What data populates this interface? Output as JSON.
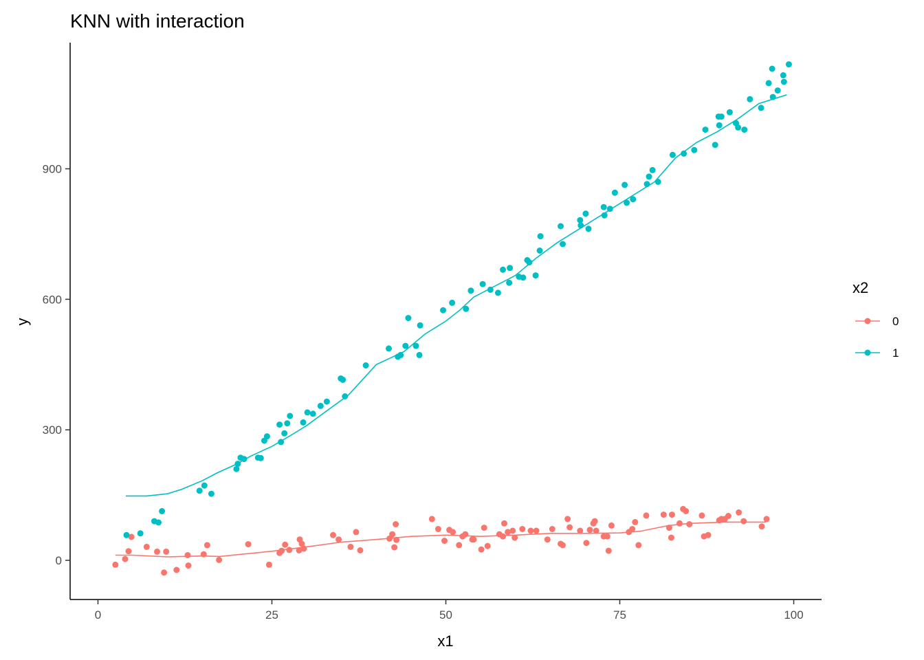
{
  "chart_data": {
    "type": "scatter",
    "title": "KNN with interaction",
    "xlabel": "x1",
    "ylabel": "y",
    "xlim": [
      -4,
      104
    ],
    "ylim": [
      -90,
      1190
    ],
    "x_ticks": [
      0,
      25,
      50,
      75,
      100
    ],
    "y_ticks": [
      0,
      300,
      600,
      900
    ],
    "grid": false,
    "legend": {
      "title": "x2",
      "position": "right"
    },
    "series": [
      {
        "name": "0",
        "color": "#f8766d",
        "points": [
          [
            2.5,
            -10
          ],
          [
            3.9,
            3
          ],
          [
            4.4,
            21
          ],
          [
            4.8,
            54
          ],
          [
            7,
            31
          ],
          [
            8.5,
            20
          ],
          [
            9.5,
            -28
          ],
          [
            9.8,
            20
          ],
          [
            11.3,
            -22
          ],
          [
            12.9,
            12
          ],
          [
            13,
            -12
          ],
          [
            15.2,
            14
          ],
          [
            15.7,
            35
          ],
          [
            17.4,
            1
          ],
          [
            21.6,
            37
          ],
          [
            24.6,
            -10
          ],
          [
            26.1,
            17
          ],
          [
            26.4,
            22
          ],
          [
            26.9,
            36
          ],
          [
            27.5,
            24
          ],
          [
            28.9,
            23
          ],
          [
            29,
            48
          ],
          [
            29.3,
            38
          ],
          [
            29.6,
            27
          ],
          [
            33.8,
            58
          ],
          [
            34.6,
            48
          ],
          [
            36.3,
            31
          ],
          [
            37.1,
            65
          ],
          [
            37.7,
            23
          ],
          [
            41.9,
            50
          ],
          [
            42.3,
            60
          ],
          [
            42.6,
            30
          ],
          [
            42.8,
            83
          ],
          [
            42.9,
            47
          ],
          [
            48,
            95
          ],
          [
            48.9,
            72
          ],
          [
            49.8,
            45
          ],
          [
            50.5,
            70
          ],
          [
            51,
            65
          ],
          [
            51.9,
            35
          ],
          [
            52.4,
            55
          ],
          [
            52.8,
            60
          ],
          [
            53.8,
            48
          ],
          [
            54,
            48
          ],
          [
            55.1,
            25
          ],
          [
            55.5,
            75
          ],
          [
            56,
            33
          ],
          [
            57.7,
            60
          ],
          [
            58.2,
            55
          ],
          [
            58.4,
            85
          ],
          [
            58.9,
            65
          ],
          [
            59.6,
            68
          ],
          [
            59.9,
            52
          ],
          [
            61,
            72
          ],
          [
            62.2,
            68
          ],
          [
            63,
            68
          ],
          [
            64.6,
            48
          ],
          [
            65.3,
            72
          ],
          [
            66.5,
            38
          ],
          [
            66.8,
            35
          ],
          [
            67.5,
            95
          ],
          [
            67.8,
            76
          ],
          [
            69.3,
            68
          ],
          [
            70.2,
            40
          ],
          [
            70.7,
            70
          ],
          [
            71.2,
            85
          ],
          [
            71.4,
            90
          ],
          [
            71.6,
            68
          ],
          [
            72.7,
            55
          ],
          [
            73.2,
            55
          ],
          [
            73.4,
            22
          ],
          [
            73.8,
            80
          ],
          [
            76.3,
            65
          ],
          [
            76.8,
            72
          ],
          [
            77.2,
            88
          ],
          [
            77.7,
            35
          ],
          [
            78.8,
            103
          ],
          [
            81.3,
            105
          ],
          [
            82.1,
            75
          ],
          [
            82.4,
            52
          ],
          [
            82.5,
            105
          ],
          [
            83.6,
            85
          ],
          [
            84.1,
            118
          ],
          [
            84.5,
            113
          ],
          [
            85,
            83
          ],
          [
            86.8,
            103
          ],
          [
            87.1,
            55
          ],
          [
            87.7,
            58
          ],
          [
            89.3,
            92
          ],
          [
            89.6,
            95
          ],
          [
            90.1,
            95
          ],
          [
            90.6,
            102
          ],
          [
            92.1,
            110
          ],
          [
            92.8,
            90
          ],
          [
            95.4,
            78
          ],
          [
            96.1,
            95
          ]
        ],
        "fit": [
          [
            2.5,
            12
          ],
          [
            5,
            12
          ],
          [
            10,
            8
          ],
          [
            15,
            10
          ],
          [
            17.5,
            9
          ],
          [
            20,
            13
          ],
          [
            25,
            21
          ],
          [
            30,
            31
          ],
          [
            35,
            42
          ],
          [
            40,
            48
          ],
          [
            45,
            55
          ],
          [
            50,
            58
          ],
          [
            55,
            55
          ],
          [
            60,
            58
          ],
          [
            65,
            62
          ],
          [
            70,
            62
          ],
          [
            75,
            63
          ],
          [
            78,
            67
          ],
          [
            82,
            80
          ],
          [
            85,
            85
          ],
          [
            90,
            88
          ],
          [
            96,
            88
          ]
        ]
      },
      {
        "name": "1",
        "color": "#00bfc4",
        "points": [
          [
            4.1,
            58
          ],
          [
            6.1,
            62
          ],
          [
            8.1,
            90
          ],
          [
            8.7,
            87
          ],
          [
            9.2,
            113
          ],
          [
            14.6,
            160
          ],
          [
            15.3,
            172
          ],
          [
            16.3,
            153
          ],
          [
            19.9,
            210
          ],
          [
            20.1,
            222
          ],
          [
            20.5,
            236
          ],
          [
            21,
            233
          ],
          [
            23,
            236
          ],
          [
            23.4,
            235
          ],
          [
            23.9,
            275
          ],
          [
            24.3,
            285
          ],
          [
            26.1,
            312
          ],
          [
            26.3,
            272
          ],
          [
            26.8,
            292
          ],
          [
            27.2,
            315
          ],
          [
            27.6,
            332
          ],
          [
            29.5,
            317
          ],
          [
            30.1,
            340
          ],
          [
            30.9,
            337
          ],
          [
            32,
            355
          ],
          [
            32.9,
            365
          ],
          [
            34.9,
            418
          ],
          [
            35.2,
            415
          ],
          [
            35.5,
            377
          ],
          [
            38.5,
            448
          ],
          [
            41.8,
            487
          ],
          [
            43.1,
            468
          ],
          [
            43.5,
            472
          ],
          [
            44.2,
            493
          ],
          [
            44.6,
            557
          ],
          [
            45.7,
            493
          ],
          [
            46.2,
            472
          ],
          [
            46.3,
            540
          ],
          [
            49.6,
            575
          ],
          [
            50.9,
            592
          ],
          [
            52.9,
            578
          ],
          [
            53.6,
            620
          ],
          [
            55.3,
            635
          ],
          [
            56.4,
            622
          ],
          [
            57.5,
            615
          ],
          [
            58.2,
            668
          ],
          [
            59.1,
            638
          ],
          [
            59.2,
            672
          ],
          [
            60.5,
            652
          ],
          [
            61.1,
            650
          ],
          [
            61.7,
            690
          ],
          [
            62,
            685
          ],
          [
            62.9,
            655
          ],
          [
            63.5,
            712
          ],
          [
            63.6,
            745
          ],
          [
            66.5,
            768
          ],
          [
            66.8,
            727
          ],
          [
            69.3,
            782
          ],
          [
            69.4,
            770
          ],
          [
            70.1,
            797
          ],
          [
            70.5,
            762
          ],
          [
            72.7,
            812
          ],
          [
            72.8,
            793
          ],
          [
            73.6,
            808
          ],
          [
            74.3,
            845
          ],
          [
            75.7,
            863
          ],
          [
            76,
            822
          ],
          [
            76.9,
            830
          ],
          [
            78.9,
            865
          ],
          [
            79.2,
            882
          ],
          [
            79.7,
            897
          ],
          [
            80.5,
            870
          ],
          [
            82.6,
            932
          ],
          [
            84.2,
            935
          ],
          [
            85.7,
            943
          ],
          [
            87.3,
            990
          ],
          [
            88.7,
            955
          ],
          [
            89.2,
            1020
          ],
          [
            89.3,
            1000
          ],
          [
            89.6,
            1020
          ],
          [
            90.8,
            1030
          ],
          [
            91.7,
            1005
          ],
          [
            92,
            995
          ],
          [
            92.9,
            990
          ],
          [
            93.7,
            1060
          ],
          [
            95.3,
            1040
          ],
          [
            96.4,
            1097
          ],
          [
            96.9,
            1130
          ],
          [
            97,
            1065
          ],
          [
            97.7,
            1080
          ],
          [
            98.5,
            1115
          ],
          [
            98.6,
            1100
          ],
          [
            99.3,
            1140
          ]
        ],
        "fit": [
          [
            4,
            148
          ],
          [
            7,
            148
          ],
          [
            10,
            153
          ],
          [
            12,
            163
          ],
          [
            15,
            183
          ],
          [
            17,
            200
          ],
          [
            20,
            222
          ],
          [
            22,
            240
          ],
          [
            25,
            262
          ],
          [
            28,
            290
          ],
          [
            30,
            310
          ],
          [
            33,
            345
          ],
          [
            36,
            380
          ],
          [
            38,
            415
          ],
          [
            40,
            450
          ],
          [
            44,
            480
          ],
          [
            47,
            520
          ],
          [
            50,
            550
          ],
          [
            52,
            575
          ],
          [
            54,
            605
          ],
          [
            57,
            630
          ],
          [
            60,
            655
          ],
          [
            63,
            695
          ],
          [
            66,
            730
          ],
          [
            70,
            770
          ],
          [
            73,
            800
          ],
          [
            76,
            830
          ],
          [
            80,
            870
          ],
          [
            83,
            925
          ],
          [
            86,
            960
          ],
          [
            89,
            985
          ],
          [
            92,
            1015
          ],
          [
            95,
            1050
          ],
          [
            99,
            1070
          ]
        ]
      }
    ]
  }
}
